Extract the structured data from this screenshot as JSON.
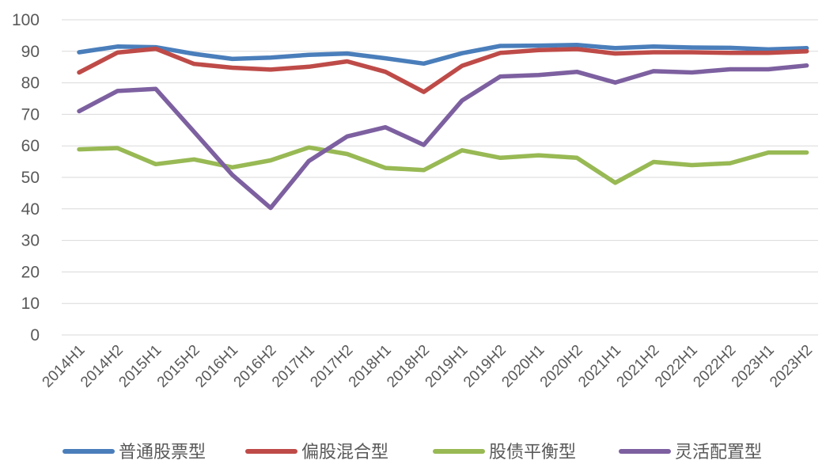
{
  "chart_data": {
    "type": "line",
    "title": "",
    "xlabel": "",
    "ylabel": "",
    "ylim": [
      0,
      100
    ],
    "y_ticks": [
      0,
      10,
      20,
      30,
      40,
      50,
      60,
      70,
      80,
      90,
      100
    ],
    "grid": "horizontal",
    "legend_position": "bottom",
    "categories": [
      "2014H1",
      "2014H2",
      "2015H1",
      "2015H2",
      "2016H1",
      "2016H2",
      "2017H1",
      "2017H2",
      "2018H1",
      "2018H2",
      "2019H1",
      "2019H2",
      "2020H1",
      "2020H2",
      "2021H1",
      "2021H2",
      "2022H1",
      "2022H2",
      "2023H1",
      "2023H2"
    ],
    "series": [
      {
        "name": "普通股票型",
        "color": "#4a7ebb",
        "values": [
          89.7,
          91.5,
          91.3,
          89.2,
          87.6,
          88.0,
          88.9,
          89.3,
          87.8,
          86.1,
          89.4,
          91.7,
          91.8,
          92.0,
          91.0,
          91.5,
          91.2,
          91.1,
          90.6,
          91.0
        ]
      },
      {
        "name": "偏股混合型",
        "color": "#be4b48",
        "values": [
          83.3,
          89.6,
          90.8,
          86.0,
          84.8,
          84.2,
          85.1,
          86.8,
          83.5,
          77.1,
          85.4,
          89.5,
          90.4,
          90.7,
          89.3,
          89.7,
          89.7,
          89.5,
          89.5,
          90.0
        ]
      },
      {
        "name": "股债平衡型",
        "color": "#98b954",
        "values": [
          58.9,
          59.3,
          54.2,
          55.7,
          53.2,
          55.4,
          59.5,
          57.4,
          53.0,
          52.3,
          58.6,
          56.2,
          57.0,
          56.2,
          48.3,
          54.9,
          53.9,
          54.5,
          57.9,
          57.9
        ]
      },
      {
        "name": "灵活配置型",
        "color": "#7d60a0",
        "values": [
          71.0,
          77.4,
          78.1,
          64.5,
          50.8,
          40.3,
          55.2,
          63.0,
          65.9,
          60.3,
          74.4,
          82.0,
          82.5,
          83.5,
          80.1,
          83.7,
          83.3,
          84.3,
          84.3,
          85.5
        ]
      }
    ]
  }
}
